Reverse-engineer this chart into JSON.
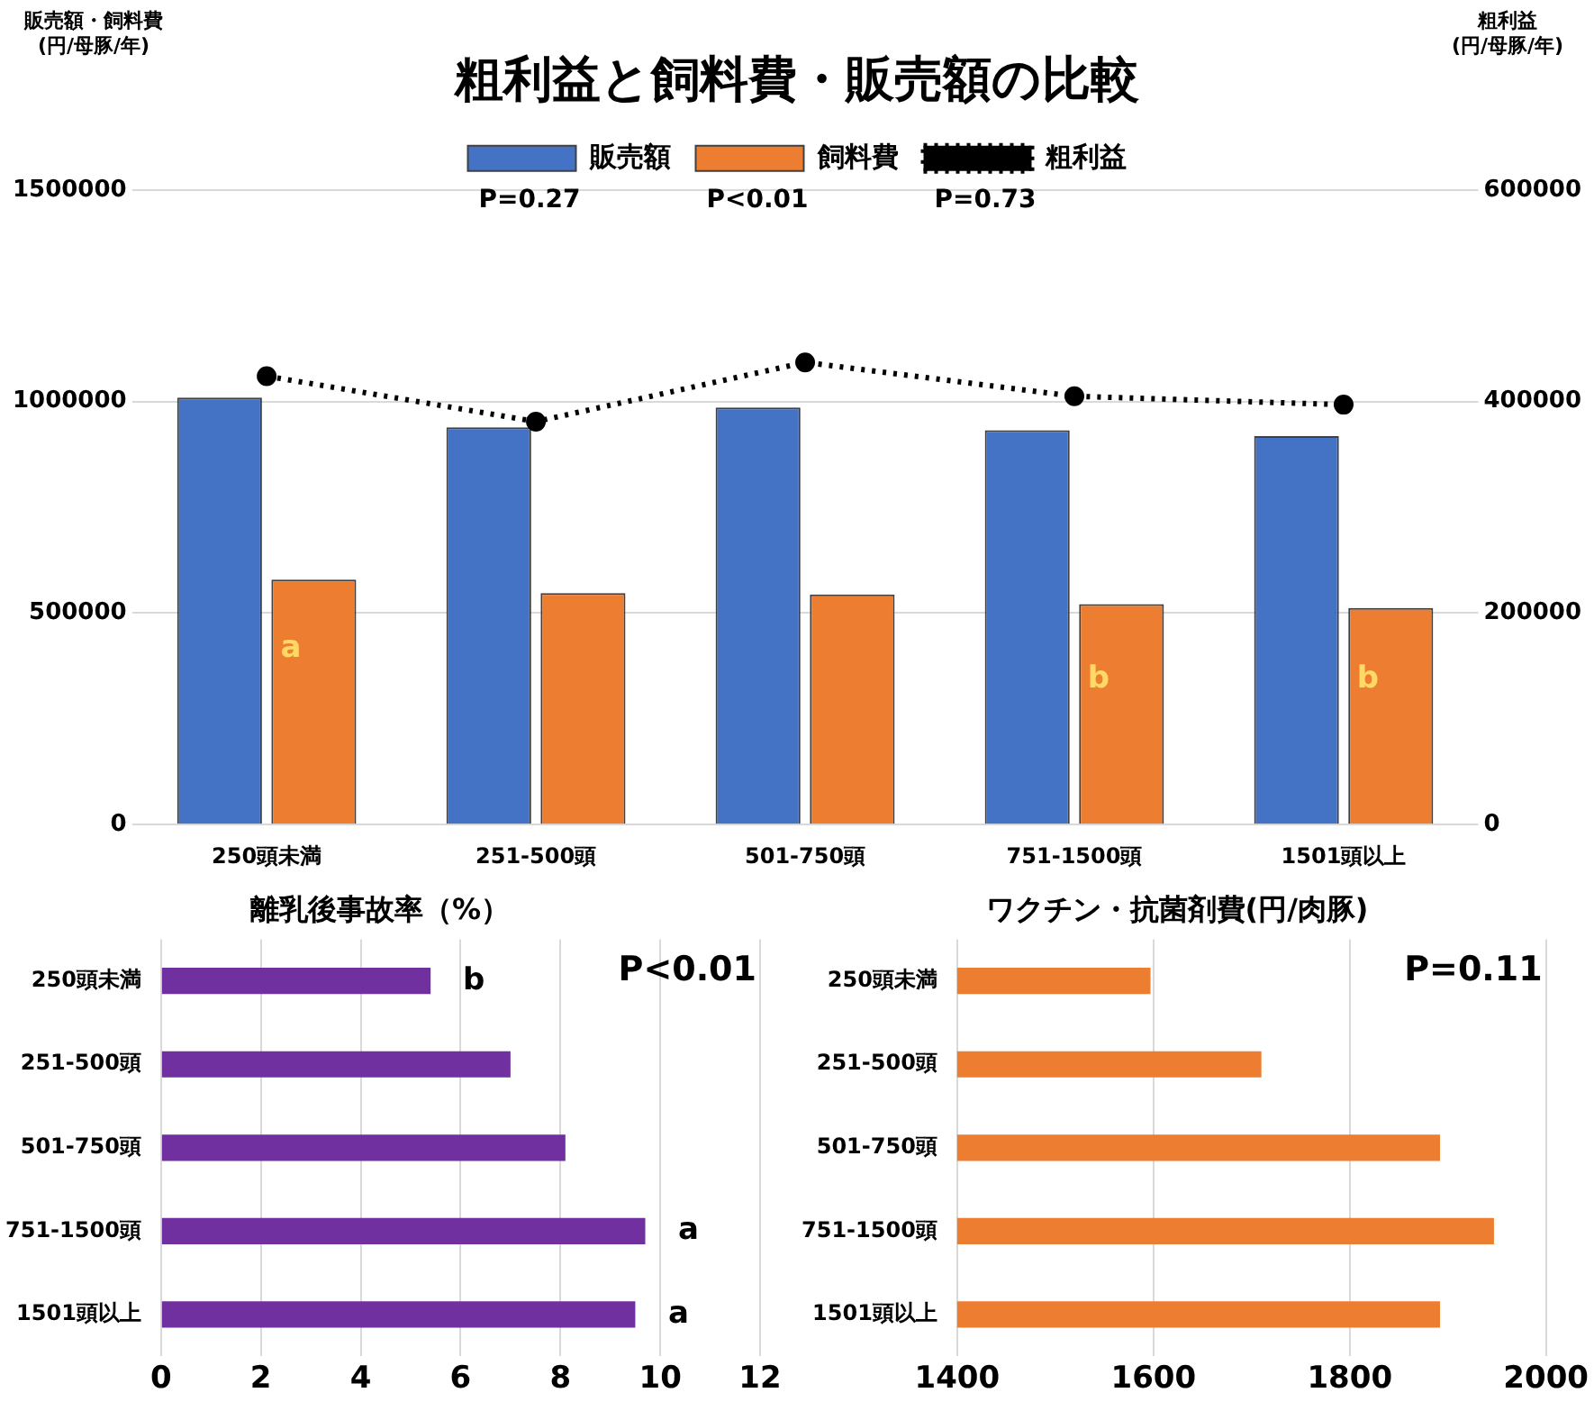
{
  "chart_data": [
    {
      "type": "bar",
      "title": "粗利益と飼料費・販売額の比較",
      "ylabel": "販売額・飼料費\n(円/母豚/年)",
      "y2label": "粗利益\n(円/母豚/年)",
      "categories": [
        "250頭未満",
        "251-500頭",
        "501-750頭",
        "751-1500頭",
        "1501頭以上"
      ],
      "series": [
        {
          "name": "販売額",
          "color": "#4472c4",
          "values": [
            1009000,
            939000,
            986000,
            932000,
            918000
          ]
        },
        {
          "name": "飼料費",
          "color": "#ed7d31",
          "values": [
            579000,
            547000,
            544000,
            521000,
            512000
          ]
        },
        {
          "name": "粗利益",
          "type": "line",
          "axis": "y2",
          "color": "#000000",
          "marker": "circle",
          "line_style": "dotted",
          "values": [
            424000,
            381000,
            437000,
            405000,
            397000
          ]
        }
      ],
      "ylim": [
        0,
        1500000
      ],
      "yticks": [
        0,
        500000,
        1000000,
        1500000
      ],
      "y2lim": [
        0,
        600000
      ],
      "y2ticks": [
        0,
        200000,
        400000,
        600000
      ],
      "grid": "y",
      "legend": "top",
      "annotations": [
        "P=0.27",
        "P<0.01",
        "P=0.73",
        {
          "text": "a",
          "x": "250頭未満",
          "y": 416000
        },
        {
          "text": "b",
          "x": "751-1500頭",
          "y": 343000
        },
        {
          "text": "b",
          "x": "1501頭以上",
          "y": 343000
        }
      ]
    },
    {
      "type": "bar",
      "orientation": "horizontal",
      "title": "離乳後事故率（%）",
      "categories": [
        "250頭未満",
        "251-500頭",
        "501-750頭",
        "751-1500頭",
        "1501頭以上"
      ],
      "values": [
        5.4,
        7.0,
        8.1,
        9.7,
        9.5
      ],
      "color": "#7030a0",
      "xlim": [
        0,
        12
      ],
      "xticks": [
        0,
        2,
        4,
        6,
        8,
        10,
        12
      ],
      "grid": "x",
      "annotations": [
        "P<0.01",
        {
          "text": "b",
          "x": 5.4,
          "y": "250頭未満"
        },
        {
          "text": "a",
          "x": 9.7,
          "y": "751-1500頭"
        },
        {
          "text": "a",
          "x": 9.5,
          "y": "1501頭以上"
        }
      ]
    },
    {
      "type": "bar",
      "orientation": "horizontal",
      "title": "ワクチン・抗菌剤費(円/肉豚)",
      "categories": [
        "250頭未満",
        "251-500頭",
        "501-750頭",
        "751-1500頭",
        "1501頭以上"
      ],
      "values": [
        1597,
        1710,
        1892,
        1947,
        1892
      ],
      "color": "#ed7d31",
      "xlim": [
        1400,
        2000
      ],
      "xticks": [
        1400,
        1600,
        1800,
        2000
      ],
      "grid": "x",
      "annotations": [
        "P=0.11"
      ]
    }
  ]
}
